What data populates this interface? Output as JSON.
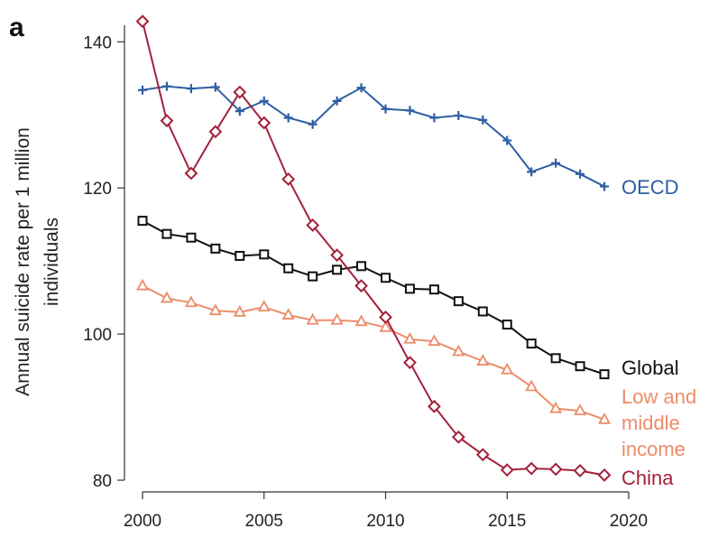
{
  "panel_label": "a",
  "chart_data": {
    "type": "line",
    "title": "",
    "xlabel": "",
    "ylabel": "Annual suicide rate per 1 million individuals",
    "ylabel_lines": [
      "Annual suicide rate per 1 million",
      "individuals"
    ],
    "xlim": [
      2000,
      2020
    ],
    "ylim": [
      80,
      143
    ],
    "xticks": [
      2000,
      2005,
      2010,
      2015,
      2020
    ],
    "yticks": [
      80,
      100,
      120,
      140
    ],
    "grid": false,
    "legend": "direct labels at right end of lines",
    "x": [
      2000,
      2001,
      2002,
      2003,
      2004,
      2005,
      2006,
      2007,
      2008,
      2009,
      2010,
      2011,
      2012,
      2013,
      2014,
      2015,
      2016,
      2017,
      2018,
      2019
    ],
    "series": [
      {
        "name": "OECD",
        "label_lines": [
          "OECD"
        ],
        "color": "#2e5fa3",
        "marker": "plus",
        "values": [
          133.4,
          133.9,
          133.6,
          133.8,
          130.5,
          131.9,
          129.6,
          128.7,
          131.9,
          133.7,
          130.8,
          130.6,
          129.6,
          129.9,
          129.3,
          126.5,
          122.2,
          123.4,
          121.9,
          120.2
        ]
      },
      {
        "name": "Global",
        "label_lines": [
          "Global"
        ],
        "color": "#111111",
        "marker": "square",
        "values": [
          115.5,
          113.7,
          113.2,
          111.7,
          110.7,
          110.9,
          109.0,
          107.9,
          108.8,
          109.3,
          107.7,
          106.2,
          106.1,
          104.5,
          103.1,
          101.3,
          98.7,
          96.7,
          95.6,
          94.5
        ]
      },
      {
        "name": "Low and middle income",
        "label_lines": [
          "Low and",
          "middle",
          "income"
        ],
        "color": "#ec8c6a",
        "marker": "triangle",
        "values": [
          106.6,
          104.9,
          104.3,
          103.2,
          103.0,
          103.7,
          102.6,
          101.9,
          101.9,
          101.7,
          100.9,
          99.3,
          99.0,
          97.6,
          96.3,
          95.1,
          92.8,
          89.8,
          89.5,
          88.3
        ]
      },
      {
        "name": "China",
        "label_lines": [
          "China"
        ],
        "color": "#a3213a",
        "marker": "diamond",
        "values": [
          142.8,
          129.2,
          122.0,
          127.7,
          133.1,
          128.9,
          121.2,
          114.9,
          110.8,
          106.6,
          102.3,
          96.1,
          90.1,
          85.9,
          83.5,
          81.4,
          81.6,
          81.5,
          81.3,
          80.7
        ]
      }
    ]
  }
}
